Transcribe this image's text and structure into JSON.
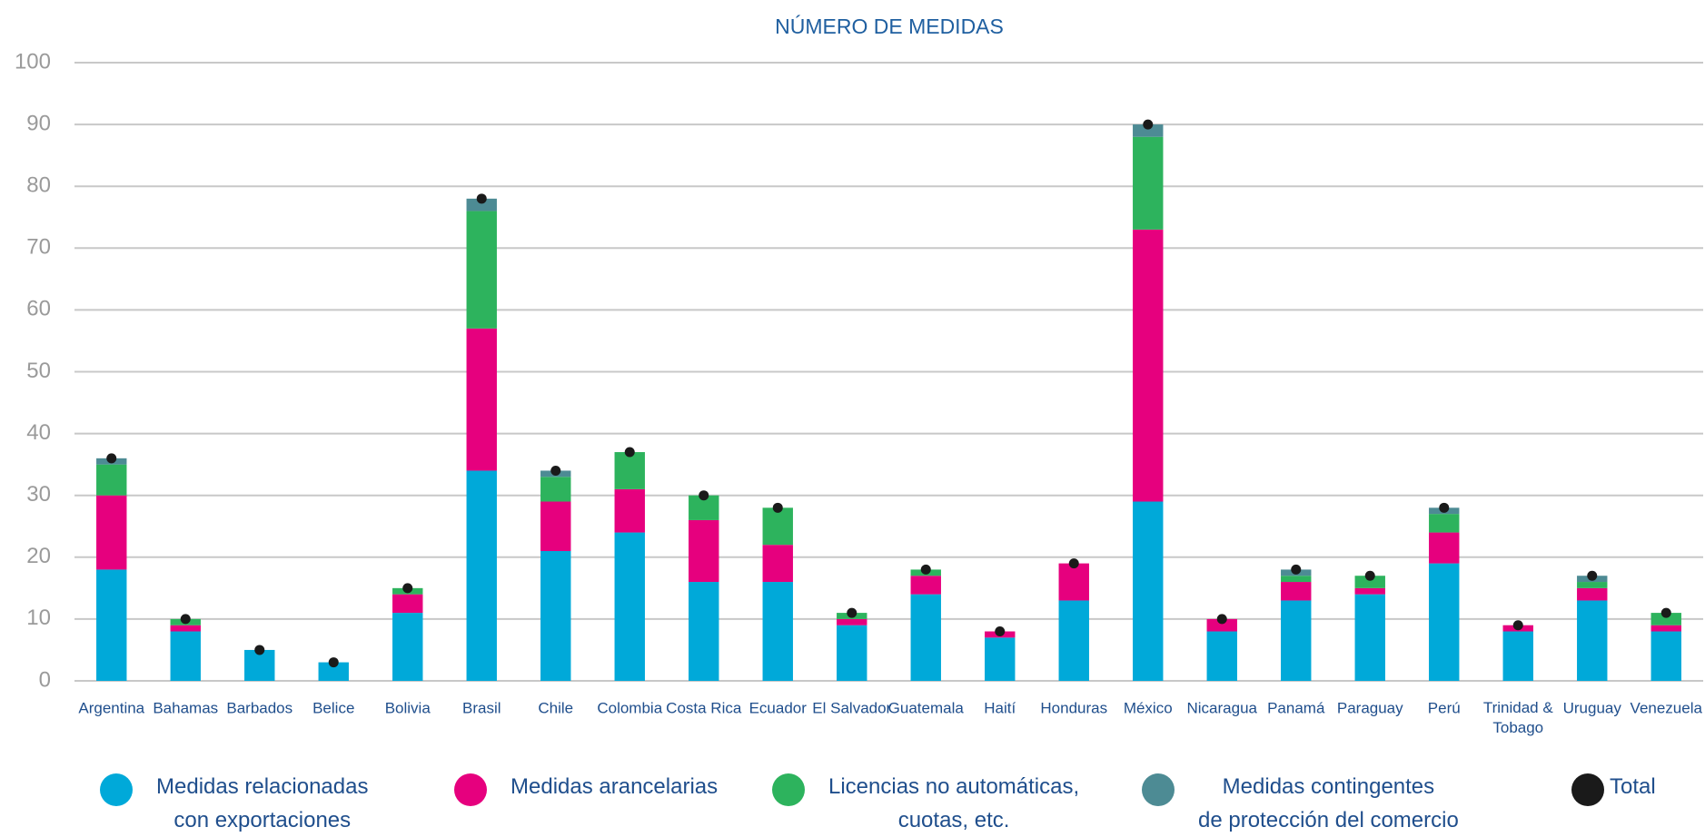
{
  "chart_data": {
    "type": "bar",
    "stacked": true,
    "title": "NÚMERO DE MEDIDAS",
    "categories": [
      "Argentina",
      "Bahamas",
      "Barbados",
      "Belice",
      "Bolivia",
      "Brasil",
      "Chile",
      "Colombia",
      "Costa Rica",
      "Ecuador",
      "El Salvador",
      "Guatemala",
      "Haití",
      "Honduras",
      "México",
      "Nicaragua",
      "Panamá",
      "Paraguay",
      "Perú",
      "Trinidad &\nTobago",
      "Uruguay",
      "Venezuela"
    ],
    "series": [
      {
        "name": "Medidas relacionadas\ncon exportaciones",
        "color": "#00a9d9",
        "values": [
          18,
          8,
          5,
          3,
          11,
          34,
          21,
          24,
          16,
          16,
          9,
          14,
          7,
          13,
          29,
          8,
          13,
          14,
          19,
          8,
          13,
          8
        ]
      },
      {
        "name": "Medidas arancelarias",
        "color": "#e6007e",
        "values": [
          12,
          1,
          0,
          0,
          3,
          23,
          8,
          7,
          10,
          6,
          1,
          3,
          1,
          6,
          44,
          2,
          3,
          1,
          5,
          1,
          2,
          1
        ]
      },
      {
        "name": "Licencias no automáticas,\ncuotas, etc.",
        "color": "#2db35d",
        "values": [
          5,
          1,
          0,
          0,
          1,
          19,
          4,
          6,
          4,
          6,
          1,
          1,
          0,
          0,
          15,
          0,
          1,
          2,
          3,
          0,
          1,
          2
        ]
      },
      {
        "name": "Medidas contingentes\nde protección del comercio",
        "color": "#4d8b94",
        "values": [
          1,
          0,
          0,
          0,
          0,
          2,
          1,
          0,
          0,
          0,
          0,
          0,
          0,
          0,
          2,
          0,
          1,
          0,
          1,
          0,
          1,
          0
        ]
      },
      {
        "name": "Total",
        "color": "#1a1a1a",
        "marker": "dot",
        "values": [
          36,
          10,
          5,
          3,
          15,
          78,
          34,
          37,
          30,
          28,
          11,
          18,
          8,
          19,
          90,
          10,
          18,
          17,
          28,
          9,
          17,
          11
        ]
      }
    ],
    "ylim": [
      0,
      100
    ],
    "yticks": [
      0,
      10,
      20,
      30,
      40,
      50,
      60,
      70,
      80,
      90,
      100
    ],
    "grid": true
  }
}
